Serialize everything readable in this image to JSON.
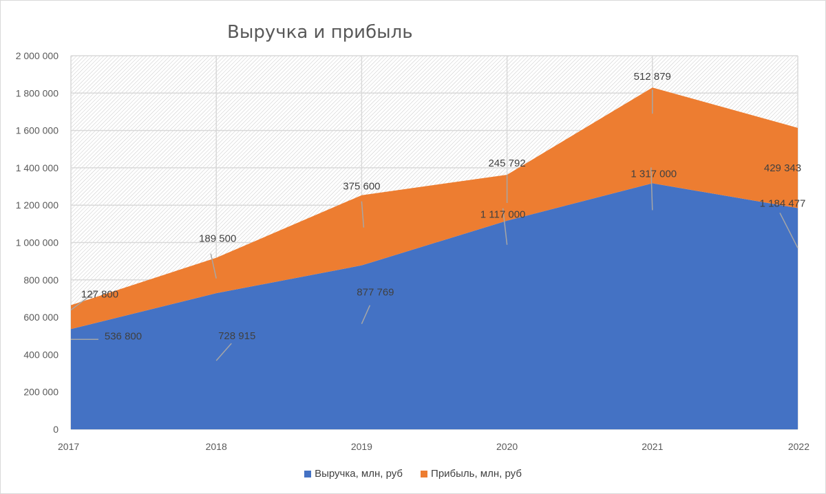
{
  "chart_data": {
    "type": "area",
    "stacked": true,
    "title": "Выручка и прибыль",
    "x": [
      "2017",
      "2018",
      "2019",
      "2020",
      "2021",
      "2022"
    ],
    "ylim": [
      0,
      2000000
    ],
    "yticks": [
      0,
      200000,
      400000,
      600000,
      800000,
      1000000,
      1200000,
      1400000,
      1600000,
      1800000,
      2000000
    ],
    "ytick_labels": [
      "0",
      "200 000",
      "400 000",
      "600 000",
      "800 000",
      "1 000 000",
      "1 200 000",
      "1 400 000",
      "1 600 000",
      "1 800 000",
      "2 000 000"
    ],
    "grid": true,
    "legend_position": "bottom",
    "series": [
      {
        "name": "Выручка, млн, руб",
        "color": "#4472C4",
        "values": [
          536800,
          728915,
          877769,
          1117000,
          1317000,
          1184477
        ],
        "labels": [
          "536 800",
          "728 915",
          "877 769",
          "1 117 000",
          "1 317 000",
          "1 184 477"
        ]
      },
      {
        "name": "Прибыль, млн, руб",
        "color": "#ED7D31",
        "values": [
          127800,
          189500,
          375600,
          245792,
          512879,
          429343
        ],
        "labels": [
          "127 800",
          "189 500",
          "375 600",
          "245 792",
          "512 879",
          "429 343"
        ]
      }
    ]
  }
}
